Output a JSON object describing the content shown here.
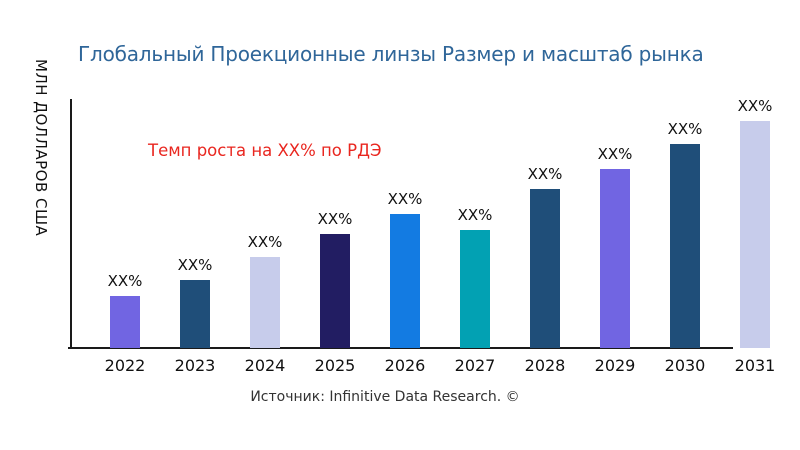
{
  "chart_data": {
    "type": "bar",
    "title": "Глобальный Проекционные линзы Размер и масштаб рынка",
    "title_color": "#2f6699",
    "ylabel": "МЛН ДОЛЛАРОВ США",
    "xlabel": "",
    "categories": [
      "2022",
      "2023",
      "2024",
      "2025",
      "2026",
      "2027",
      "2028",
      "2029",
      "2030",
      "2031"
    ],
    "value_labels": [
      "XX%",
      "XX%",
      "XX%",
      "XX%",
      "XX%",
      "XX%",
      "XX%",
      "XX%",
      "XX%",
      "XX%"
    ],
    "values_relative_pct_of_max": [
      23,
      30,
      40,
      50,
      59,
      52,
      70,
      79,
      90,
      100
    ],
    "bar_colors": [
      "#7165e2",
      "#1f4e79",
      "#c7cceb",
      "#221d62",
      "#137be2",
      "#02a1b3",
      "#1f4e79",
      "#7165e2",
      "#1f4e79",
      "#c7cceb"
    ],
    "annotation": {
      "text": "Темп роста на XX% по РДЭ",
      "color": "#e9261f"
    },
    "source": "Источник: Infinitive Data Research. ©",
    "legend": "none",
    "grid": false,
    "y_tick_labels": []
  }
}
